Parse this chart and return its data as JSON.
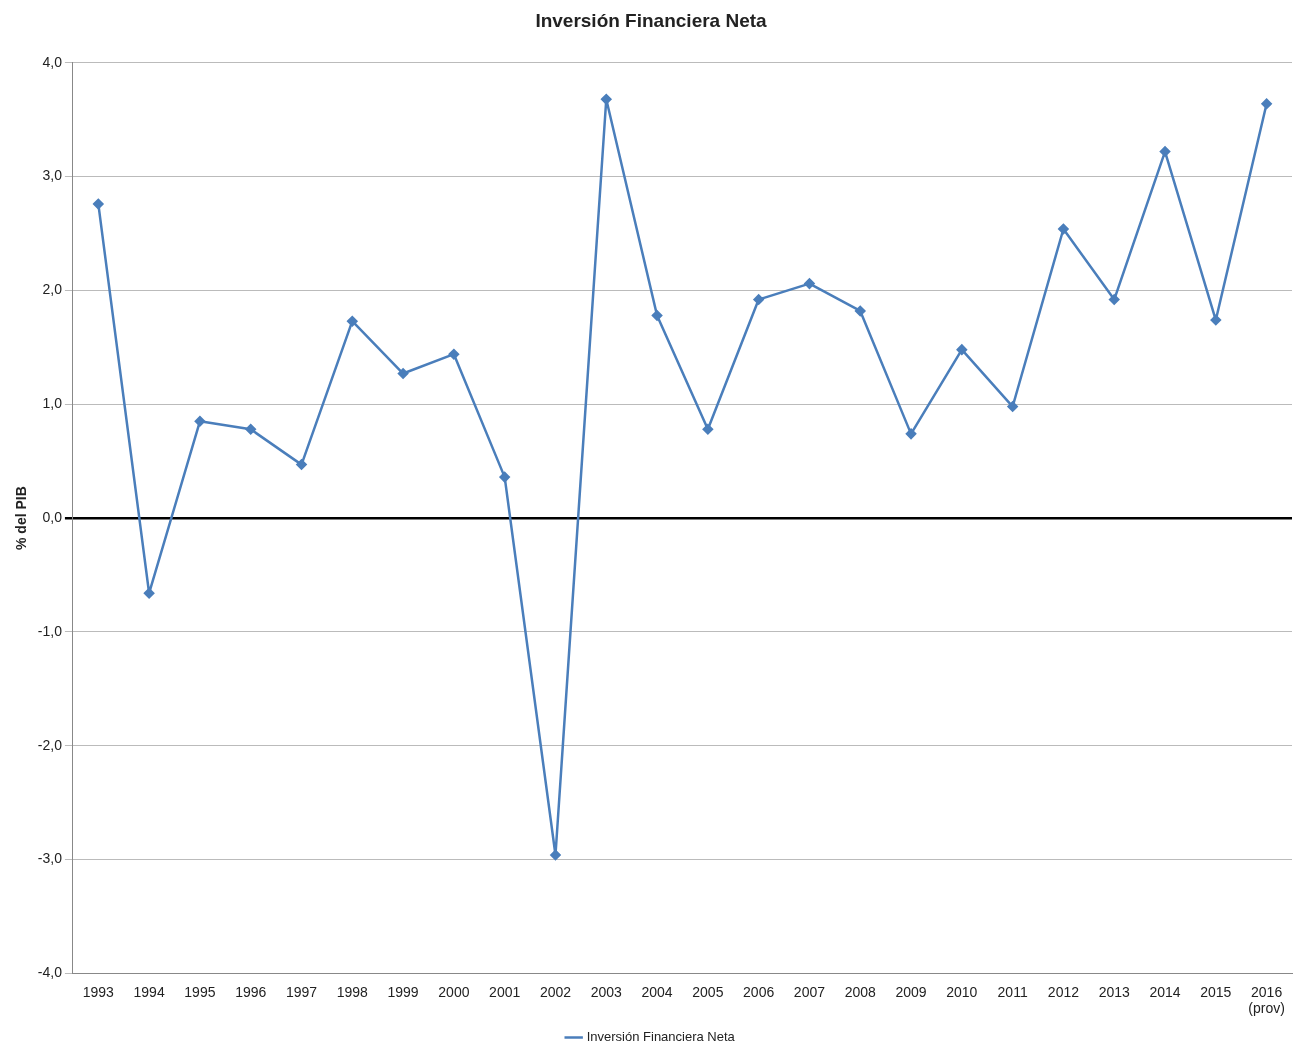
{
  "chart_data": {
    "type": "line",
    "title": "Inversión Financiera Neta",
    "ylabel": "% del PIB",
    "categories": [
      "1993",
      "1994",
      "1995",
      "1996",
      "1997",
      "1998",
      "1999",
      "2000",
      "2001",
      "2002",
      "2003",
      "2004",
      "2005",
      "2006",
      "2007",
      "2008",
      "2009",
      "2010",
      "2011",
      "2012",
      "2013",
      "2014",
      "2015",
      "2016\n(prov)"
    ],
    "series": [
      {
        "name": "Inversión Financiera Neta",
        "color": "#4a7ebb",
        "values": [
          2.76,
          -0.66,
          0.85,
          0.78,
          0.47,
          1.73,
          1.27,
          1.44,
          0.36,
          -2.96,
          3.68,
          1.78,
          0.78,
          1.92,
          2.06,
          1.82,
          0.74,
          1.48,
          0.98,
          2.54,
          1.92,
          3.22,
          1.74,
          3.64
        ]
      }
    ],
    "ylim": [
      -4,
      4
    ],
    "yticks": [
      {
        "value": -4,
        "label": "-4,0"
      },
      {
        "value": -3,
        "label": "-3,0"
      },
      {
        "value": -2,
        "label": "-2,0"
      },
      {
        "value": -1,
        "label": "-1,0"
      },
      {
        "value": 0,
        "label": "0,0"
      },
      {
        "value": 1,
        "label": "1,0"
      },
      {
        "value": 2,
        "label": "2,0"
      },
      {
        "value": 3,
        "label": "3,0"
      },
      {
        "value": 4,
        "label": "4,0"
      }
    ],
    "grid": "y",
    "legend": "bottom",
    "marker": "diamond",
    "line_style": "solid"
  }
}
